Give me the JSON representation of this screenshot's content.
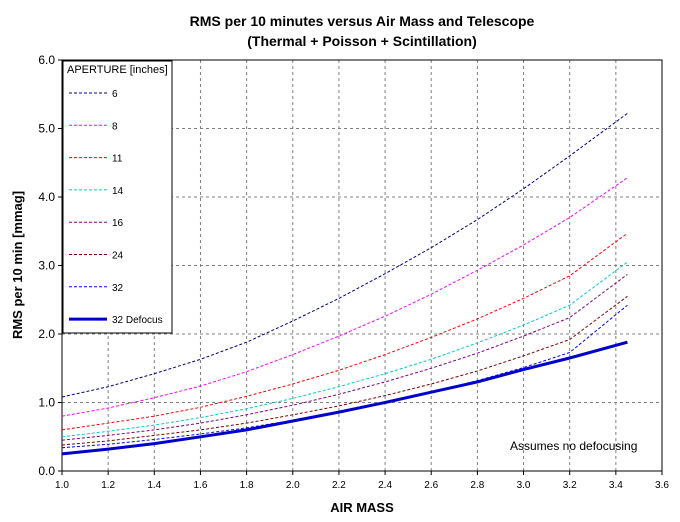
{
  "chart_data": {
    "type": "line",
    "title": "RMS per 10 minutes versus Air Mass and Telescope",
    "subtitle": "(Thermal + Poisson + Scintillation)",
    "xlabel": "AIR MASS",
    "ylabel": "RMS per 10 min [mmag]",
    "xlim": [
      1.0,
      3.6
    ],
    "ylim": [
      0.0,
      6.0
    ],
    "x_ticks": [
      "1.0",
      "1.2",
      "1.4",
      "1.6",
      "1.8",
      "2.0",
      "2.2",
      "2.4",
      "2.6",
      "2.8",
      "3.0",
      "3.2",
      "3.4",
      "3.6"
    ],
    "y_ticks": [
      "0.0",
      "1.0",
      "2.0",
      "3.0",
      "4.0",
      "5.0",
      "6.0"
    ],
    "grid": true,
    "legend_title": "APERTURE [inches]",
    "legend_position": "top-left",
    "annotation": "Assumes no defocusing",
    "x": [
      1.0,
      1.2,
      1.4,
      1.6,
      1.8,
      2.0,
      2.2,
      2.4,
      2.6,
      2.8,
      3.0,
      3.2,
      3.45
    ],
    "series": [
      {
        "name": "6",
        "color": "#000080",
        "style": "dashed",
        "values": [
          1.08,
          1.23,
          1.42,
          1.63,
          1.88,
          2.19,
          2.52,
          2.88,
          3.26,
          3.67,
          4.12,
          4.6,
          5.22
        ]
      },
      {
        "name": "8",
        "color": "#ff00ff",
        "style": "dashed",
        "values": [
          0.8,
          0.92,
          1.07,
          1.24,
          1.45,
          1.7,
          1.97,
          2.26,
          2.58,
          2.93,
          3.3,
          3.7,
          4.28
        ]
      },
      {
        "name": "11",
        "color": "#ff0000",
        "style": "dashed",
        "values": [
          0.6,
          0.7,
          0.8,
          0.93,
          1.09,
          1.27,
          1.47,
          1.7,
          1.95,
          2.22,
          2.52,
          2.85,
          3.47
        ]
      },
      {
        "name": "14",
        "color": "#00cccc",
        "style": "dashed",
        "values": [
          0.5,
          0.58,
          0.67,
          0.78,
          0.91,
          1.06,
          1.23,
          1.42,
          1.63,
          1.87,
          2.13,
          2.42,
          3.05
        ]
      },
      {
        "name": "16",
        "color": "#800080",
        "style": "dashed",
        "values": [
          0.45,
          0.52,
          0.6,
          0.7,
          0.82,
          0.96,
          1.12,
          1.3,
          1.5,
          1.72,
          1.97,
          2.24,
          2.87
        ]
      },
      {
        "name": "24",
        "color": "#800000",
        "style": "dashed",
        "values": [
          0.38,
          0.44,
          0.52,
          0.6,
          0.7,
          0.82,
          0.95,
          1.1,
          1.27,
          1.46,
          1.68,
          1.92,
          2.55
        ]
      },
      {
        "name": "32",
        "color": "#0000ff",
        "style": "dashed",
        "values": [
          0.34,
          0.39,
          0.46,
          0.54,
          0.63,
          0.74,
          0.87,
          1.0,
          1.15,
          1.32,
          1.51,
          1.73,
          2.42
        ]
      },
      {
        "name": "32 Defocus",
        "color": "#0000cc",
        "style": "solid-bold",
        "values": [
          0.25,
          0.32,
          0.4,
          0.5,
          0.6,
          0.73,
          0.86,
          1.0,
          1.15,
          1.3,
          1.48,
          1.65,
          1.88
        ]
      }
    ]
  }
}
